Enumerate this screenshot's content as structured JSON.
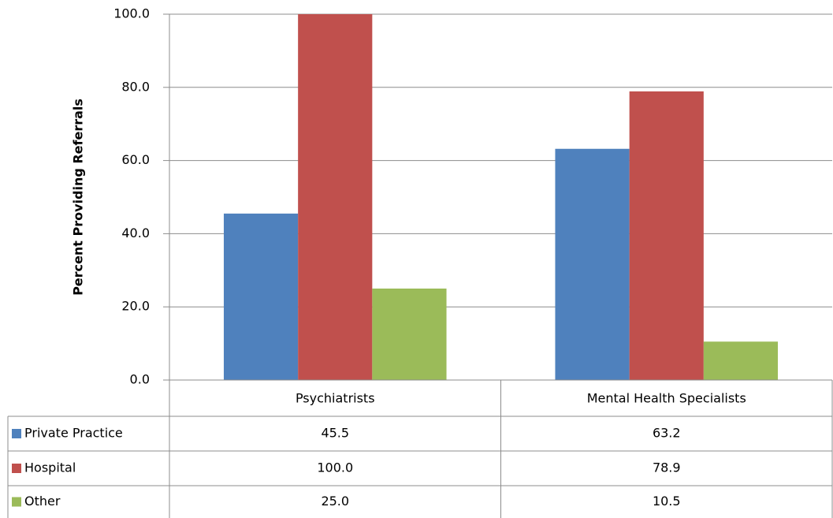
{
  "chart_data": {
    "type": "bar",
    "y_label": "Percent Providing Referrals",
    "categories": [
      "Psychiatrists",
      "Mental Health Specialists"
    ],
    "series": [
      {
        "name": "Private Practice",
        "color": "#4f81bd",
        "values": [
          45.5,
          63.2
        ],
        "value_labels": [
          "45.5",
          "63.2"
        ]
      },
      {
        "name": "Hospital",
        "color": "#c0504d",
        "values": [
          100.0,
          78.9
        ],
        "value_labels": [
          "100.0",
          "78.9"
        ]
      },
      {
        "name": "Other",
        "color": "#9bbb59",
        "values": [
          25.0,
          10.5
        ],
        "value_labels": [
          "25.0",
          "10.5"
        ]
      }
    ],
    "ylim": [
      0,
      100
    ],
    "yticks": [
      {
        "value": 0,
        "label": "0.0"
      },
      {
        "value": 20,
        "label": "20.0"
      },
      {
        "value": 40,
        "label": "40.0"
      },
      {
        "value": 60,
        "label": "60.0"
      },
      {
        "value": 80,
        "label": "80.0"
      },
      {
        "value": 100,
        "label": "100.0"
      }
    ],
    "grid": true,
    "data_table": true
  }
}
